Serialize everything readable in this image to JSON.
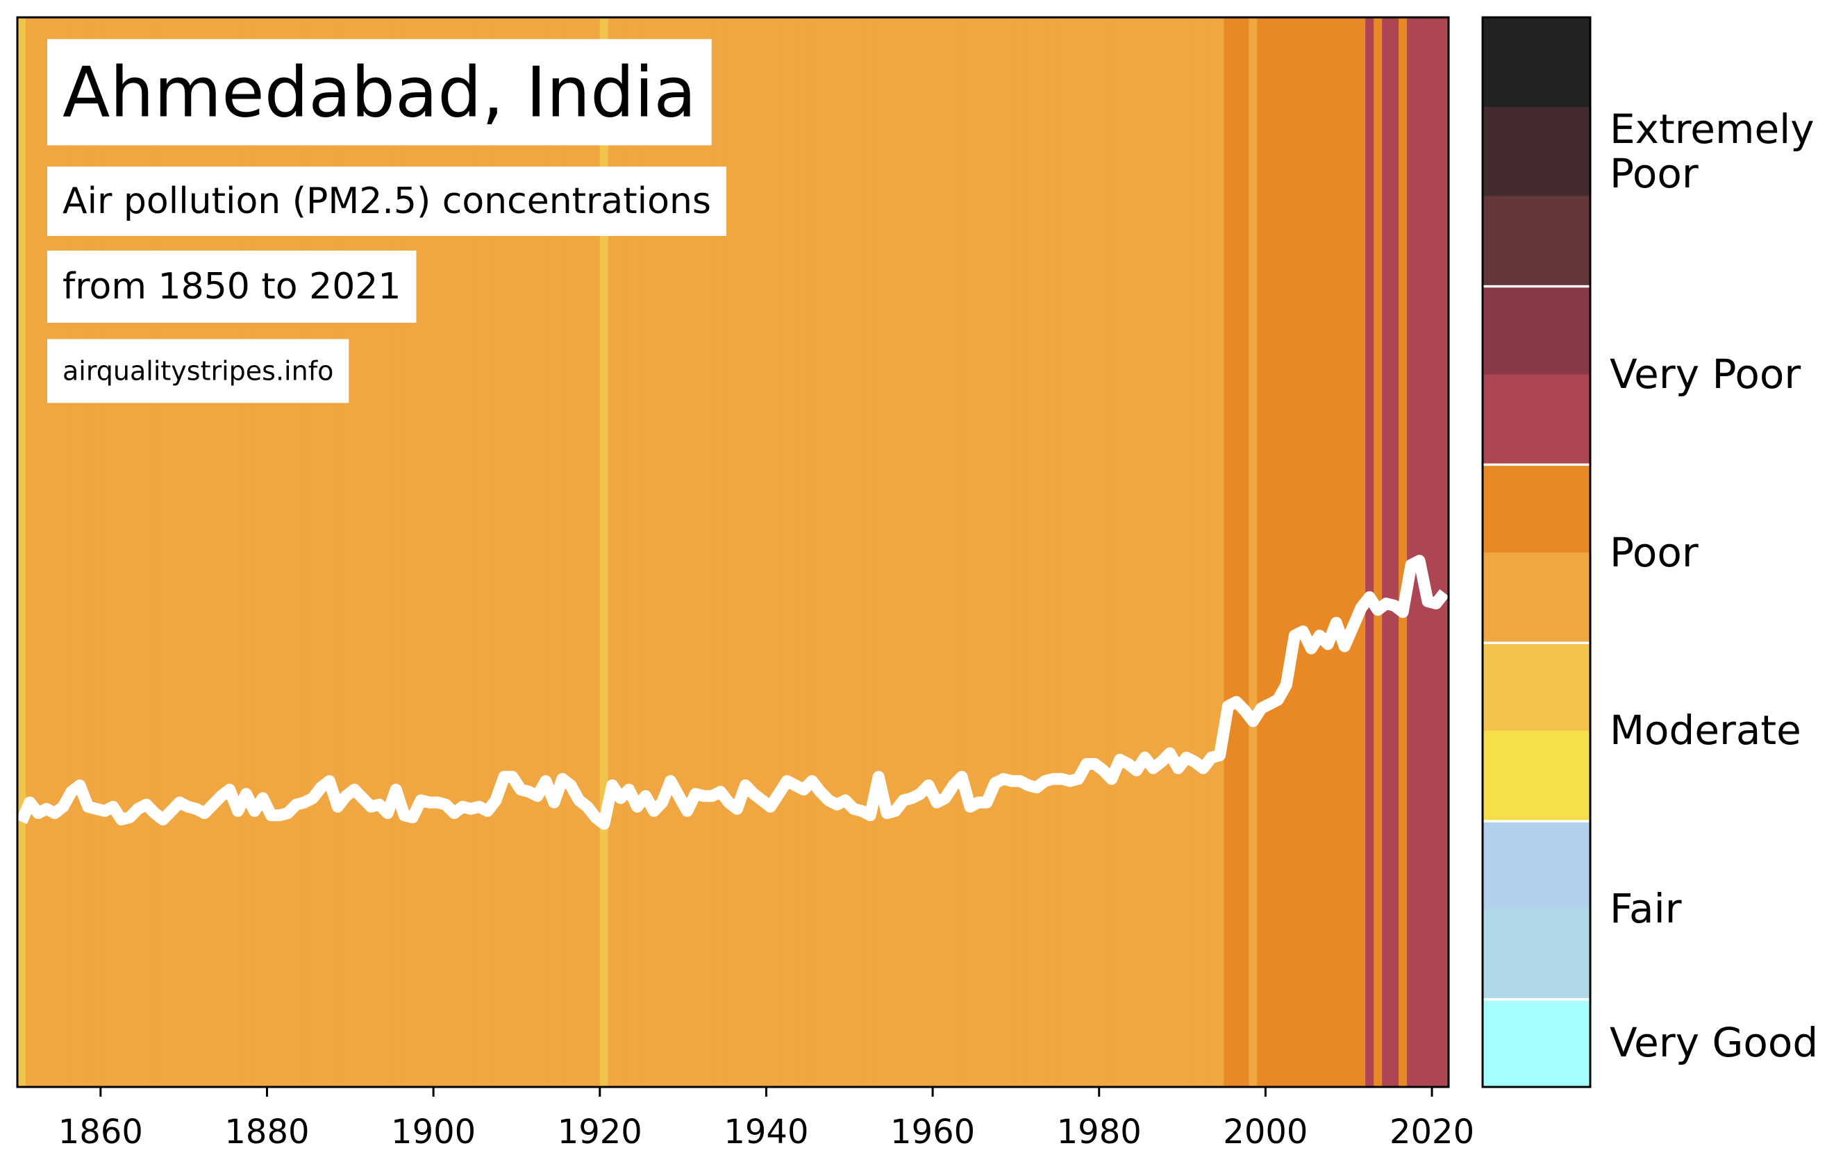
{
  "chart_data": {
    "type": "stripes",
    "title": "Ahmedabad, India",
    "subtitle": "Air pollution (PM2.5) concentrations",
    "period": "from 1850 to 2021",
    "source": "airqualitystripes.info",
    "line_color": "#ffffff",
    "x": [
      1850,
      1851,
      1852,
      1853,
      1854,
      1855,
      1856,
      1857,
      1858,
      1859,
      1860,
      1861,
      1862,
      1863,
      1864,
      1865,
      1866,
      1867,
      1868,
      1869,
      1870,
      1871,
      1872,
      1873,
      1874,
      1875,
      1876,
      1877,
      1878,
      1879,
      1880,
      1881,
      1882,
      1883,
      1884,
      1885,
      1886,
      1887,
      1888,
      1889,
      1890,
      1891,
      1892,
      1893,
      1894,
      1895,
      1896,
      1897,
      1898,
      1899,
      1900,
      1901,
      1902,
      1903,
      1904,
      1905,
      1906,
      1907,
      1908,
      1909,
      1910,
      1911,
      1912,
      1913,
      1914,
      1915,
      1916,
      1917,
      1918,
      1919,
      1920,
      1921,
      1922,
      1923,
      1924,
      1925,
      1926,
      1927,
      1928,
      1929,
      1930,
      1931,
      1932,
      1933,
      1934,
      1935,
      1936,
      1937,
      1938,
      1939,
      1940,
      1941,
      1942,
      1943,
      1944,
      1945,
      1946,
      1947,
      1948,
      1949,
      1950,
      1951,
      1952,
      1953,
      1954,
      1955,
      1956,
      1957,
      1958,
      1959,
      1960,
      1961,
      1962,
      1963,
      1964,
      1965,
      1966,
      1967,
      1968,
      1969,
      1970,
      1971,
      1972,
      1973,
      1974,
      1975,
      1976,
      1977,
      1978,
      1979,
      1980,
      1981,
      1982,
      1983,
      1984,
      1985,
      1986,
      1987,
      1988,
      1989,
      1990,
      1991,
      1992,
      1993,
      1994,
      1995,
      1996,
      1997,
      1998,
      1999,
      2000,
      2001,
      2002,
      2003,
      2004,
      2005,
      2006,
      2007,
      2008,
      2009,
      2010,
      2011,
      2012,
      2013,
      2014,
      2015,
      2016,
      2017,
      2018,
      2019,
      2020,
      2021
    ],
    "values": [
      24.9,
      25.8,
      25.3,
      25.5,
      25.3,
      25.6,
      26.3,
      26.6,
      25.6,
      25.5,
      25.4,
      25.6,
      25.0,
      25.1,
      25.5,
      25.7,
      25.3,
      25.0,
      25.4,
      25.8,
      25.6,
      25.5,
      25.3,
      25.7,
      26.1,
      26.4,
      25.4,
      26.2,
      25.4,
      26.0,
      25.2,
      25.2,
      25.3,
      25.7,
      25.8,
      26.0,
      26.5,
      26.8,
      25.6,
      26.1,
      26.4,
      26.0,
      25.6,
      25.7,
      25.3,
      26.4,
      25.2,
      25.1,
      25.9,
      25.8,
      25.8,
      25.7,
      25.3,
      25.6,
      25.5,
      25.6,
      25.4,
      25.9,
      27.0,
      27.0,
      26.4,
      26.3,
      26.1,
      26.8,
      25.8,
      26.9,
      26.6,
      25.9,
      25.6,
      25.1,
      24.8,
      26.6,
      26.0,
      26.4,
      25.6,
      26.1,
      25.4,
      25.8,
      26.8,
      26.1,
      25.4,
      26.2,
      26.1,
      26.1,
      26.3,
      25.8,
      25.5,
      26.6,
      26.2,
      25.9,
      25.6,
      26.2,
      26.8,
      26.6,
      26.4,
      26.8,
      26.3,
      25.9,
      25.7,
      25.9,
      25.5,
      25.4,
      25.2,
      27.0,
      25.3,
      25.4,
      25.9,
      26.0,
      26.2,
      26.6,
      25.8,
      26.0,
      26.6,
      27.0,
      25.6,
      25.8,
      25.8,
      26.7,
      26.9,
      26.8,
      26.8,
      26.6,
      26.5,
      26.8,
      26.9,
      26.9,
      26.8,
      26.9,
      27.6,
      27.6,
      27.3,
      26.9,
      27.8,
      27.6,
      27.3,
      27.9,
      27.4,
      27.7,
      28.1,
      27.4,
      27.9,
      27.7,
      27.4,
      27.9,
      28.0,
      30.3,
      30.5,
      30.1,
      29.6,
      30.2,
      30.4,
      30.6,
      31.3,
      33.6,
      33.8,
      33.0,
      33.6,
      33.2,
      34.2,
      33.1,
      34.0,
      34.9,
      35.4,
      34.8,
      35.1,
      35.0,
      34.7,
      36.9,
      37.1,
      35.2,
      35.1,
      35.6
    ],
    "xlim": [
      1850,
      2022
    ],
    "ylim": [
      12.5,
      62.5
    ],
    "xticks": [
      1860,
      1880,
      1900,
      1920,
      1940,
      1960,
      1980,
      2000,
      2020
    ],
    "colorbar": {
      "lim": [
        0,
        60
      ],
      "bounds": [
        0,
        5,
        10,
        15,
        20,
        25,
        30,
        35,
        40,
        45,
        50,
        55,
        60
      ],
      "levels": [
        {
          "label": "Very Good",
          "colors": [
            "#a6fefe"
          ]
        },
        {
          "label": "Fair",
          "colors": [
            "#afd9e6",
            "#b1d0ec"
          ]
        },
        {
          "label": "Moderate",
          "colors": [
            "#f6df48",
            "#f2c44b"
          ]
        },
        {
          "label": "Poor",
          "colors": [
            "#f0a741",
            "#e88926"
          ]
        },
        {
          "label": "Very Poor",
          "colors": [
            "#ad4553",
            "#8a3a46"
          ]
        },
        {
          "label": "Extremely\nPoor",
          "colors": [
            "#663738",
            "#442c2e",
            "#222222"
          ]
        }
      ]
    }
  }
}
